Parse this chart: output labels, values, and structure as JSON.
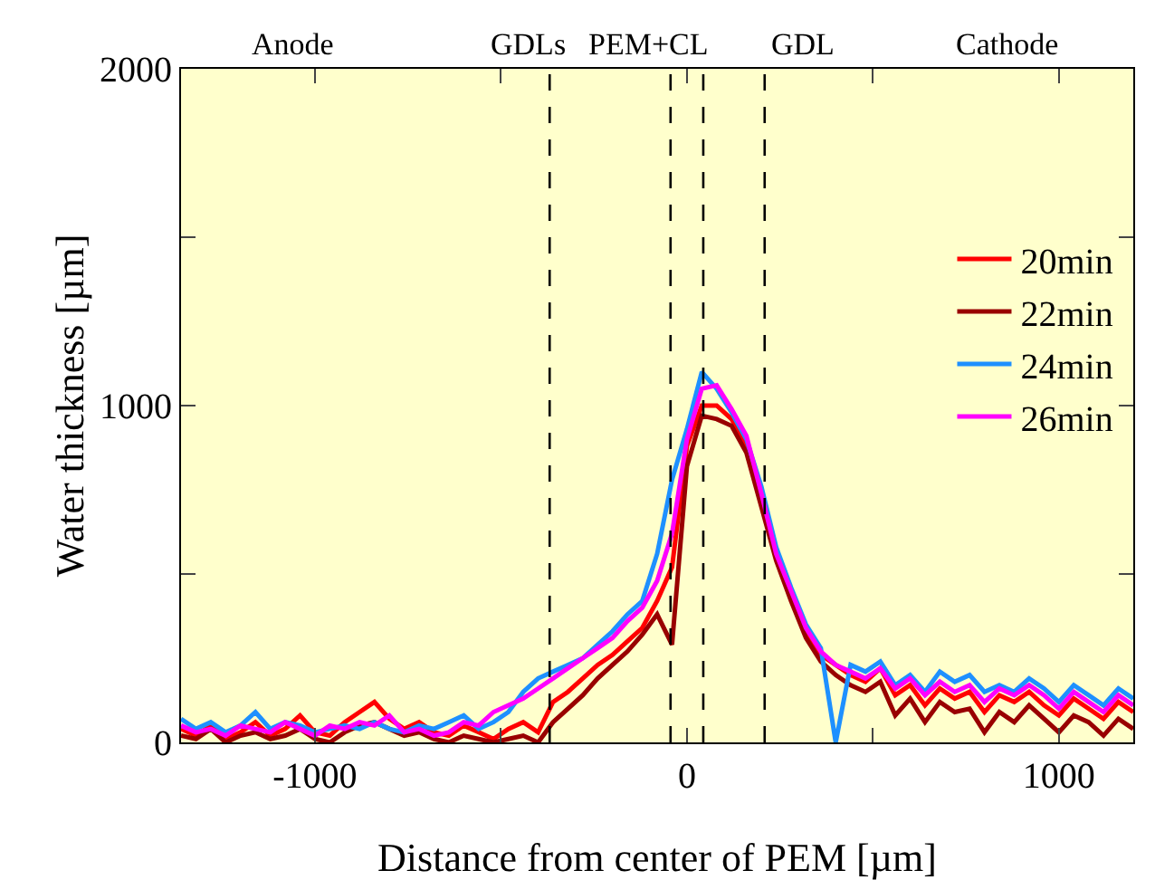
{
  "chart_data": {
    "type": "line",
    "xlabel": "Distance from center of PEM [µm]",
    "ylabel": "Water thickness [µm]",
    "annotations": [
      "Anode",
      "GDLs",
      "PEM+CL",
      "GDL",
      "Cathode"
    ],
    "x": [
      -1360,
      -1320,
      -1280,
      -1240,
      -1200,
      -1160,
      -1120,
      -1080,
      -1040,
      -1000,
      -960,
      -920,
      -880,
      -840,
      -800,
      -760,
      -720,
      -680,
      -640,
      -600,
      -560,
      -520,
      -480,
      -440,
      -400,
      -360,
      -320,
      -280,
      -240,
      -200,
      -160,
      -120,
      -80,
      -40,
      0,
      40,
      80,
      120,
      160,
      200,
      240,
      280,
      320,
      360,
      400,
      440,
      480,
      520,
      560,
      600,
      640,
      680,
      720,
      760,
      800,
      840,
      880,
      920,
      960,
      1000,
      1040,
      1080,
      1120,
      1160,
      1200
    ],
    "series": [
      {
        "name": "20min",
        "color": "#ff0000",
        "values": [
          40,
          20,
          50,
          10,
          30,
          60,
          20,
          40,
          80,
          30,
          20,
          60,
          90,
          120,
          70,
          40,
          60,
          30,
          20,
          50,
          30,
          10,
          40,
          60,
          30,
          120,
          150,
          190,
          230,
          260,
          300,
          340,
          420,
          520,
          880,
          1000,
          1000,
          960,
          880,
          720,
          560,
          440,
          330,
          260,
          230,
          200,
          180,
          220,
          140,
          170,
          110,
          160,
          130,
          150,
          90,
          140,
          120,
          150,
          110,
          80,
          130,
          100,
          70,
          120,
          90
        ]
      },
      {
        "name": "22min",
        "color": "#990000",
        "values": [
          20,
          10,
          40,
          0,
          20,
          30,
          10,
          20,
          40,
          10,
          0,
          30,
          50,
          60,
          40,
          20,
          30,
          10,
          0,
          20,
          10,
          0,
          10,
          20,
          0,
          60,
          100,
          140,
          190,
          230,
          270,
          320,
          380,
          290,
          820,
          970,
          960,
          940,
          860,
          700,
          540,
          420,
          310,
          240,
          200,
          170,
          150,
          180,
          80,
          130,
          60,
          120,
          90,
          100,
          30,
          90,
          60,
          110,
          70,
          30,
          80,
          60,
          20,
          70,
          40
        ]
      },
      {
        "name": "24min",
        "color": "#1e90ff",
        "values": [
          70,
          40,
          60,
          30,
          50,
          90,
          40,
          60,
          50,
          30,
          40,
          50,
          40,
          60,
          40,
          30,
          50,
          40,
          60,
          80,
          40,
          60,
          90,
          150,
          190,
          210,
          230,
          250,
          290,
          330,
          380,
          420,
          560,
          780,
          930,
          1100,
          1050,
          980,
          900,
          760,
          580,
          460,
          350,
          280,
          0,
          230,
          210,
          240,
          170,
          200,
          150,
          210,
          180,
          200,
          150,
          170,
          150,
          190,
          160,
          120,
          170,
          140,
          110,
          160,
          130
        ]
      },
      {
        "name": "26min",
        "color": "#ff00ff",
        "values": [
          50,
          30,
          40,
          20,
          50,
          40,
          30,
          60,
          40,
          20,
          50,
          40,
          60,
          50,
          80,
          30,
          40,
          20,
          30,
          60,
          50,
          90,
          110,
          130,
          160,
          190,
          220,
          250,
          280,
          310,
          360,
          400,
          480,
          620,
          900,
          1050,
          1060,
          990,
          910,
          740,
          560,
          450,
          340,
          270,
          230,
          210,
          190,
          220,
          160,
          190,
          140,
          180,
          150,
          170,
          120,
          160,
          140,
          170,
          140,
          100,
          150,
          120,
          90,
          140,
          110
        ]
      }
    ],
    "xlim": [
      -1360,
      1200
    ],
    "xticks": [
      -1000,
      {
        "value": -500,
        "label": null
      },
      0,
      {
        "value": 500,
        "label": null
      },
      1000
    ],
    "ylim": [
      0,
      2000
    ],
    "yticks": [
      0,
      {
        "value": 500,
        "label": null
      },
      1000,
      {
        "value": 1500,
        "label": null
      },
      2000
    ],
    "ref_lines": [
      {
        "axis": "x",
        "value": -369,
        "color": "#000000",
        "line_style": "dashed"
      },
      {
        "axis": "x",
        "value": -44,
        "color": "#000000",
        "line_style": "dashed"
      },
      {
        "axis": "x",
        "value": 44,
        "color": "#000000",
        "line_style": "dashed"
      },
      {
        "axis": "x",
        "value": 209,
        "color": "#000000",
        "line_style": "dashed"
      }
    ],
    "grid": false,
    "legend": "top right",
    "line_style": "solid",
    "marker": "none"
  }
}
